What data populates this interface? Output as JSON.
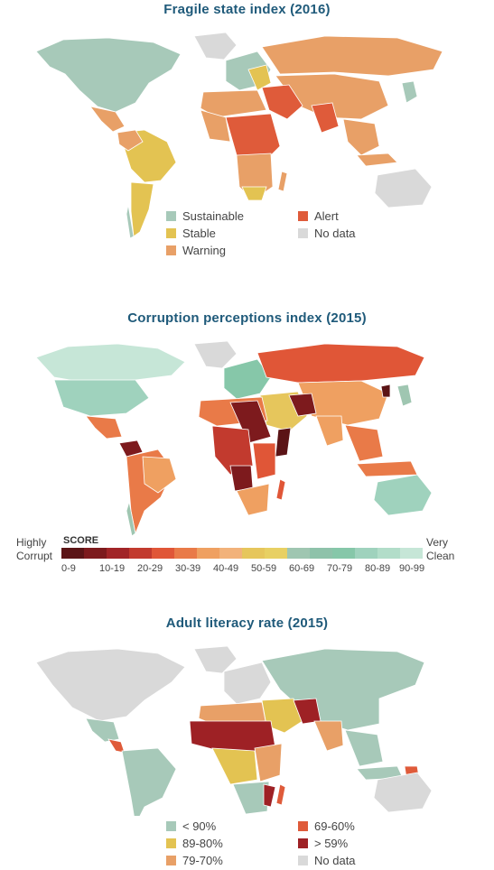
{
  "panels": [
    {
      "title": "Fragile state index (2016)",
      "legend": [
        {
          "label": "Sustainable",
          "color": "#a7c9b9"
        },
        {
          "label": "Stable",
          "color": "#e3c352"
        },
        {
          "label": "Warning",
          "color": "#e8a067"
        },
        {
          "label": "Alert",
          "color": "#df5b3a"
        },
        {
          "label": "No data",
          "color": "#d9d9d9"
        }
      ]
    },
    {
      "title": "Corruption perceptions index (2015)",
      "legend_left": "Highly Corrupt",
      "legend_right": "Very Clean",
      "score_label": "SCORE",
      "score_ticks": [
        "0-9",
        "10-19",
        "20-29",
        "30-39",
        "40-49",
        "50-59",
        "60-69",
        "70-79",
        "80-89",
        "90-99"
      ],
      "score_colors": [
        "#5b1416",
        "#7d1a1d",
        "#a12427",
        "#c23a2e",
        "#e05637",
        "#e97a48",
        "#efa061",
        "#f2b27a",
        "#e6c65c",
        "#e8d063",
        "#9fc6b1",
        "#8ec2aa",
        "#86c7a9",
        "#9fd2bd",
        "#b2ddc9",
        "#c6e6d7"
      ]
    },
    {
      "title": "Adult literacy rate (2015)",
      "legend": [
        {
          "label": "< 90%",
          "color": "#a7c9b9"
        },
        {
          "label": "89-80%",
          "color": "#e3c352"
        },
        {
          "label": "79-70%",
          "color": "#e8a067"
        },
        {
          "label": "69-60%",
          "color": "#df5b3a"
        },
        {
          "label": "> 59%",
          "color": "#9e2125"
        },
        {
          "label": "No data",
          "color": "#d9d9d9"
        }
      ]
    }
  ]
}
